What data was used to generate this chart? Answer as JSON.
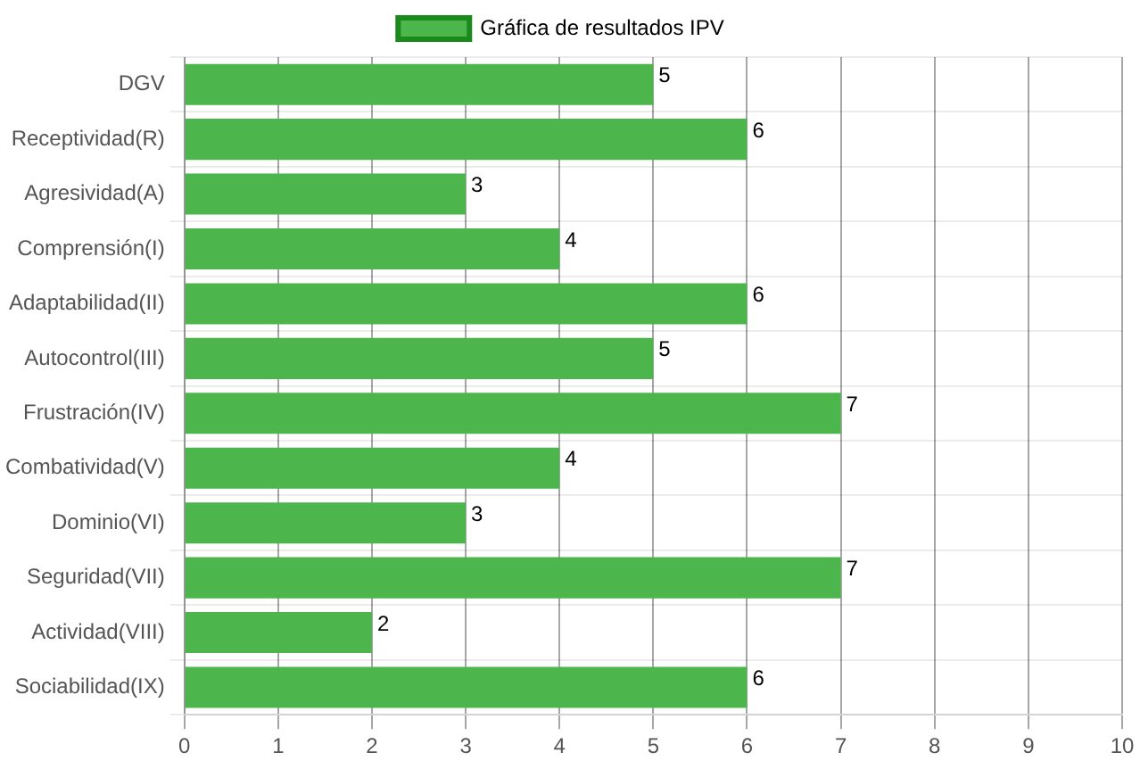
{
  "chart_data": {
    "type": "bar",
    "orientation": "horizontal",
    "categories": [
      "DGV",
      "Receptividad(R)",
      "Agresividad(A)",
      "Comprensión(I)",
      "Adaptabilidad(II)",
      "Autocontrol(III)",
      "Frustración(IV)",
      "Combatividad(V)",
      "Dominio(VI)",
      "Seguridad(VII)",
      "Actividad(VIII)",
      "Sociabilidad(IX)"
    ],
    "series": [
      {
        "name": "Gráfica de resultados IPV",
        "color": "#4cb54c",
        "values": [
          5,
          6,
          3,
          4,
          6,
          5,
          7,
          4,
          3,
          7,
          2,
          6
        ]
      }
    ],
    "xlim": [
      0,
      10
    ],
    "xticks": [
      0,
      1,
      2,
      3,
      4,
      5,
      6,
      7,
      8,
      9,
      10
    ],
    "grid": true,
    "legend": "top",
    "data_labels": true
  }
}
